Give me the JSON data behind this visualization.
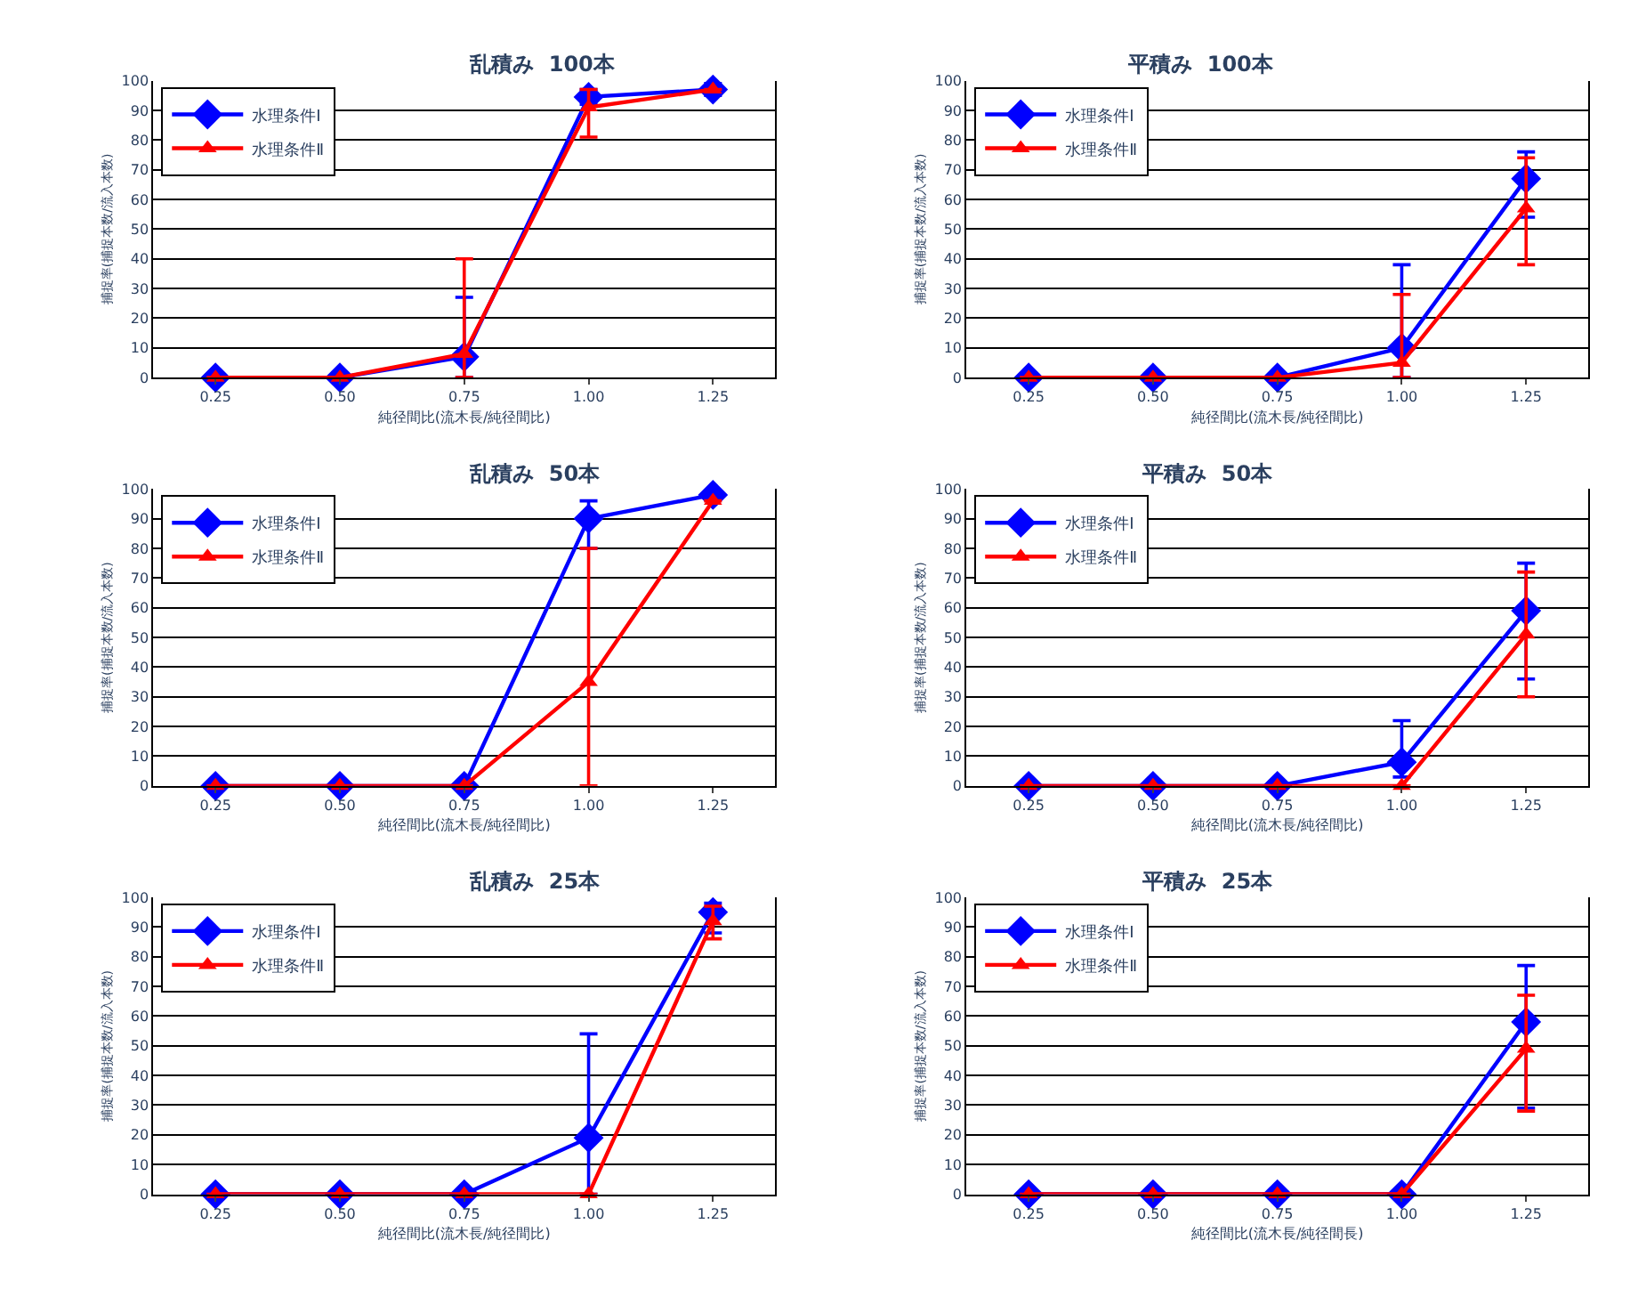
{
  "chart_data": [
    {
      "type": "line",
      "title": "乱積み  100本",
      "xlabel": "純径間比(流木長/純径間比)",
      "ylabel": "捕捉率(捕捉本数/流入本数)",
      "categories": [
        "0.25",
        "0.50",
        "0.75",
        "1.00",
        "1.25"
      ],
      "ylim": [
        0,
        100
      ],
      "yticks": [
        0,
        10,
        20,
        30,
        40,
        50,
        60,
        70,
        80,
        90,
        100
      ],
      "grid": "y",
      "legend": "top left",
      "series": [
        {
          "name": "水理条件Ⅰ",
          "color": "#0000ff",
          "marker": "diamond",
          "values": [
            0,
            0,
            7,
            94.5,
            97
          ],
          "errors": [
            null,
            null,
            [
              0,
              27
            ],
            [
              92,
              97
            ],
            [
              95,
              99
            ]
          ]
        },
        {
          "name": "水理条件Ⅱ",
          "color": "#ff0000",
          "marker": "triangle",
          "values": [
            0,
            0,
            8,
            91,
            97
          ],
          "errors": [
            null,
            null,
            [
              0,
              40
            ],
            [
              81,
              97
            ],
            null
          ]
        }
      ]
    },
    {
      "type": "line",
      "title": "平積み  100本",
      "xlabel": "純径間比(流木長/純径間比)",
      "ylabel": "捕捉率(捕捉本数/流入本数)",
      "categories": [
        "0.25",
        "0.50",
        "0.75",
        "1.00",
        "1.25"
      ],
      "ylim": [
        0,
        100
      ],
      "yticks": [
        0,
        10,
        20,
        30,
        40,
        50,
        60,
        70,
        80,
        90,
        100
      ],
      "grid": "y",
      "legend": "top left",
      "series": [
        {
          "name": "水理条件Ⅰ",
          "color": "#0000ff",
          "marker": "diamond",
          "values": [
            0,
            0,
            0,
            10,
            67
          ],
          "errors": [
            null,
            null,
            null,
            [
              0,
              38
            ],
            [
              54,
              76
            ]
          ]
        },
        {
          "name": "水理条件Ⅱ",
          "color": "#ff0000",
          "marker": "triangle",
          "values": [
            0,
            0,
            0,
            5,
            57
          ],
          "errors": [
            null,
            null,
            null,
            [
              0,
              28
            ],
            [
              38,
              74
            ]
          ]
        }
      ]
    },
    {
      "type": "line",
      "title": "乱積み  50本",
      "xlabel": "純径間比(流木長/純径間比)",
      "ylabel": "捕捉率(捕捉本数/流入本数)",
      "categories": [
        "0.25",
        "0.50",
        "0.75",
        "1.00",
        "1.25"
      ],
      "ylim": [
        0,
        100
      ],
      "yticks": [
        0,
        10,
        20,
        30,
        40,
        50,
        60,
        70,
        80,
        90,
        100
      ],
      "grid": "y",
      "legend": "top left",
      "series": [
        {
          "name": "水理条件Ⅰ",
          "color": "#0000ff",
          "marker": "diamond",
          "values": [
            0,
            0,
            0,
            90,
            98
          ],
          "errors": [
            null,
            null,
            null,
            [
              80,
              96
            ],
            null
          ]
        },
        {
          "name": "水理条件Ⅱ",
          "color": "#ff0000",
          "marker": "triangle",
          "values": [
            0,
            0,
            0,
            35,
            96
          ],
          "errors": [
            null,
            null,
            null,
            [
              0,
              80
            ],
            null
          ]
        }
      ]
    },
    {
      "type": "line",
      "title": "平積み  50本",
      "xlabel": "純径間比(流木長/純径間比)",
      "ylabel": "捕捉率(捕捉本数/流入本数)",
      "categories": [
        "0.25",
        "0.50",
        "0.75",
        "1.00",
        "1.25"
      ],
      "ylim": [
        0,
        100
      ],
      "yticks": [
        0,
        10,
        20,
        30,
        40,
        50,
        60,
        70,
        80,
        90,
        100
      ],
      "grid": "y",
      "legend": "top left",
      "series": [
        {
          "name": "水理条件Ⅰ",
          "color": "#0000ff",
          "marker": "diamond",
          "values": [
            0,
            0,
            0,
            8,
            59
          ],
          "errors": [
            null,
            null,
            null,
            [
              3,
              22
            ],
            [
              36,
              75
            ]
          ]
        },
        {
          "name": "水理条件Ⅱ",
          "color": "#ff0000",
          "marker": "triangle",
          "values": [
            0,
            0,
            0,
            0,
            51
          ],
          "errors": [
            null,
            null,
            null,
            null,
            [
              30,
              72
            ]
          ]
        }
      ]
    },
    {
      "type": "line",
      "title": "乱積み  25本",
      "xlabel": "純径間比(流木長/純径間比)",
      "ylabel": "捕捉率(捕捉本数/流入本数)",
      "categories": [
        "0.25",
        "0.50",
        "0.75",
        "1.00",
        "1.25"
      ],
      "ylim": [
        0,
        100
      ],
      "yticks": [
        0,
        10,
        20,
        30,
        40,
        50,
        60,
        70,
        80,
        90,
        100
      ],
      "grid": "y",
      "legend": "top left",
      "series": [
        {
          "name": "水理条件Ⅰ",
          "color": "#0000ff",
          "marker": "diamond",
          "values": [
            0,
            0,
            0,
            19,
            95
          ],
          "errors": [
            null,
            null,
            null,
            [
              0,
              54
            ],
            [
              88,
              98
            ]
          ]
        },
        {
          "name": "水理条件Ⅱ",
          "color": "#ff0000",
          "marker": "triangle",
          "values": [
            0,
            0,
            0,
            0,
            92
          ],
          "errors": [
            null,
            null,
            null,
            null,
            [
              86,
              97
            ]
          ]
        }
      ]
    },
    {
      "type": "line",
      "title": "平積み  25本",
      "xlabel": "純径間比(流木長/純径間長)",
      "ylabel": "捕捉率(捕捉本数/流入本数)",
      "categories": [
        "0.25",
        "0.50",
        "0.75",
        "1.00",
        "1.25"
      ],
      "ylim": [
        0,
        100
      ],
      "yticks": [
        0,
        10,
        20,
        30,
        40,
        50,
        60,
        70,
        80,
        90,
        100
      ],
      "grid": "y",
      "legend": "top left",
      "series": [
        {
          "name": "水理条件Ⅰ",
          "color": "#0000ff",
          "marker": "diamond",
          "values": [
            0,
            0,
            0,
            0,
            58
          ],
          "errors": [
            null,
            null,
            null,
            null,
            [
              29,
              77
            ]
          ]
        },
        {
          "name": "水理条件Ⅱ",
          "color": "#ff0000",
          "marker": "triangle",
          "values": [
            0,
            0,
            0,
            0,
            49
          ],
          "errors": [
            null,
            null,
            null,
            null,
            [
              28,
              67
            ]
          ]
        }
      ]
    }
  ]
}
